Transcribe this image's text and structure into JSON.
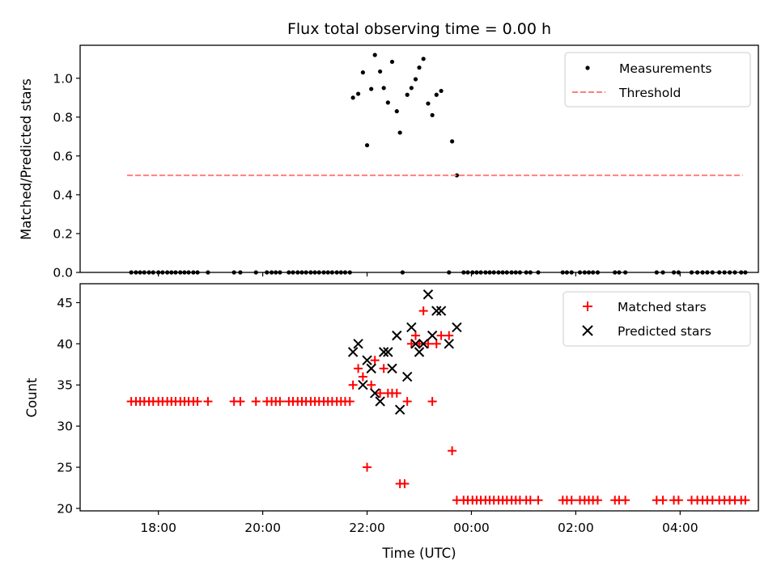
{
  "chart_data": [
    {
      "type": "scatter",
      "title": "Flux total observing time = 0.00 h",
      "xlabel": "",
      "ylabel": "Matched/Predicted stars",
      "xlim": [
        16.5,
        29.5
      ],
      "ylim": [
        0,
        1.17
      ],
      "yticks": [
        0.0,
        0.2,
        0.4,
        0.6,
        0.8,
        1.0
      ],
      "ytick_labels": [
        "0.0",
        "0.2",
        "0.4",
        "0.6",
        "0.8",
        "1.0"
      ],
      "legend_position": "top-right",
      "series": [
        {
          "name": "Measurements",
          "kind": "points",
          "color": "#000000",
          "points": [
            [
              17.48,
              0
            ],
            [
              17.57,
              0
            ],
            [
              17.65,
              0
            ],
            [
              17.73,
              0
            ],
            [
              17.82,
              0
            ],
            [
              17.9,
              0
            ],
            [
              18.0,
              0
            ],
            [
              18.08,
              0
            ],
            [
              18.17,
              0
            ],
            [
              18.25,
              0
            ],
            [
              18.33,
              0
            ],
            [
              18.42,
              0
            ],
            [
              18.5,
              0
            ],
            [
              18.58,
              0
            ],
            [
              18.67,
              0
            ],
            [
              18.75,
              0
            ],
            [
              18.95,
              0
            ],
            [
              19.45,
              0
            ],
            [
              19.57,
              0
            ],
            [
              19.87,
              0
            ],
            [
              20.08,
              0
            ],
            [
              20.17,
              0
            ],
            [
              20.25,
              0
            ],
            [
              20.33,
              0
            ],
            [
              20.5,
              0
            ],
            [
              20.58,
              0
            ],
            [
              20.67,
              0
            ],
            [
              20.75,
              0
            ],
            [
              20.83,
              0
            ],
            [
              20.92,
              0
            ],
            [
              21.0,
              0
            ],
            [
              21.08,
              0
            ],
            [
              21.17,
              0
            ],
            [
              21.25,
              0
            ],
            [
              21.33,
              0
            ],
            [
              21.42,
              0
            ],
            [
              21.5,
              0
            ],
            [
              21.58,
              0
            ],
            [
              21.67,
              0
            ],
            [
              21.73,
              0.9
            ],
            [
              21.83,
              0.92
            ],
            [
              21.92,
              1.03
            ],
            [
              22.0,
              0.655
            ],
            [
              22.08,
              0.945
            ],
            [
              22.15,
              1.12
            ],
            [
              22.25,
              1.035
            ],
            [
              22.32,
              0.95
            ],
            [
              22.4,
              0.875
            ],
            [
              22.48,
              1.085
            ],
            [
              22.57,
              0.83
            ],
            [
              22.63,
              0.72
            ],
            [
              22.68,
              0
            ],
            [
              22.77,
              0.915
            ],
            [
              22.85,
              0.95
            ],
            [
              22.93,
              0.995
            ],
            [
              23.0,
              1.055
            ],
            [
              23.08,
              1.1
            ],
            [
              23.17,
              0.87
            ],
            [
              23.25,
              0.81
            ],
            [
              23.33,
              0.915
            ],
            [
              23.42,
              0.935
            ],
            [
              23.57,
              0
            ],
            [
              23.63,
              0.675
            ],
            [
              23.72,
              0.5
            ],
            [
              23.85,
              0
            ],
            [
              23.93,
              0
            ],
            [
              24.02,
              0
            ],
            [
              24.1,
              0
            ],
            [
              24.18,
              0
            ],
            [
              24.27,
              0
            ],
            [
              24.35,
              0
            ],
            [
              24.43,
              0
            ],
            [
              24.52,
              0
            ],
            [
              24.6,
              0
            ],
            [
              24.68,
              0
            ],
            [
              24.77,
              0
            ],
            [
              24.85,
              0
            ],
            [
              24.93,
              0
            ],
            [
              25.05,
              0
            ],
            [
              25.13,
              0
            ],
            [
              25.28,
              0
            ],
            [
              25.75,
              0
            ],
            [
              25.83,
              0
            ],
            [
              25.92,
              0
            ],
            [
              26.08,
              0
            ],
            [
              26.17,
              0
            ],
            [
              26.25,
              0
            ],
            [
              26.33,
              0
            ],
            [
              26.42,
              0
            ],
            [
              26.75,
              0
            ],
            [
              26.83,
              0
            ],
            [
              26.95,
              0
            ],
            [
              27.55,
              0
            ],
            [
              27.67,
              0
            ],
            [
              27.88,
              0
            ],
            [
              27.97,
              0
            ],
            [
              28.22,
              0
            ],
            [
              28.33,
              0
            ],
            [
              28.43,
              0
            ],
            [
              28.52,
              0
            ],
            [
              28.62,
              0
            ],
            [
              28.75,
              0
            ],
            [
              28.85,
              0
            ],
            [
              28.95,
              0
            ],
            [
              29.05,
              0
            ],
            [
              29.17,
              0
            ],
            [
              29.25,
              0
            ]
          ]
        },
        {
          "name": "Threshold",
          "kind": "dashed-line",
          "color": "#ff7f7f",
          "x": [
            17.4,
            29.2
          ],
          "y": [
            0.5,
            0.5
          ]
        }
      ]
    },
    {
      "type": "scatter",
      "title": "",
      "xlabel": "Time (UTC)",
      "ylabel": "Count",
      "xlim": [
        16.5,
        29.5
      ],
      "ylim": [
        19.7,
        47.3
      ],
      "yticks": [
        20,
        25,
        30,
        35,
        40,
        45
      ],
      "ytick_labels": [
        "20",
        "25",
        "30",
        "35",
        "40",
        "45"
      ],
      "xticks": [
        18,
        20,
        22,
        24,
        26,
        28
      ],
      "xtick_labels": [
        "18:00",
        "20:00",
        "22:00",
        "00:00",
        "02:00",
        "04:00"
      ],
      "legend_position": "top-right",
      "series": [
        {
          "name": "Matched stars",
          "kind": "plus",
          "color": "#ff0000",
          "points": [
            [
              17.48,
              33
            ],
            [
              17.57,
              33
            ],
            [
              17.65,
              33
            ],
            [
              17.73,
              33
            ],
            [
              17.82,
              33
            ],
            [
              17.9,
              33
            ],
            [
              18.0,
              33
            ],
            [
              18.08,
              33
            ],
            [
              18.17,
              33
            ],
            [
              18.25,
              33
            ],
            [
              18.33,
              33
            ],
            [
              18.42,
              33
            ],
            [
              18.5,
              33
            ],
            [
              18.58,
              33
            ],
            [
              18.67,
              33
            ],
            [
              18.75,
              33
            ],
            [
              18.95,
              33
            ],
            [
              19.45,
              33
            ],
            [
              19.57,
              33
            ],
            [
              19.87,
              33
            ],
            [
              20.08,
              33
            ],
            [
              20.17,
              33
            ],
            [
              20.25,
              33
            ],
            [
              20.33,
              33
            ],
            [
              20.5,
              33
            ],
            [
              20.58,
              33
            ],
            [
              20.67,
              33
            ],
            [
              20.75,
              33
            ],
            [
              20.83,
              33
            ],
            [
              20.92,
              33
            ],
            [
              21.0,
              33
            ],
            [
              21.08,
              33
            ],
            [
              21.17,
              33
            ],
            [
              21.25,
              33
            ],
            [
              21.33,
              33
            ],
            [
              21.42,
              33
            ],
            [
              21.5,
              33
            ],
            [
              21.58,
              33
            ],
            [
              21.67,
              33
            ],
            [
              21.73,
              35
            ],
            [
              21.83,
              37
            ],
            [
              21.92,
              36
            ],
            [
              22.0,
              25
            ],
            [
              22.08,
              35
            ],
            [
              22.15,
              38
            ],
            [
              22.25,
              34
            ],
            [
              22.32,
              37
            ],
            [
              22.4,
              34
            ],
            [
              22.48,
              34
            ],
            [
              22.57,
              34
            ],
            [
              22.63,
              23
            ],
            [
              22.72,
              23
            ],
            [
              22.77,
              33
            ],
            [
              22.85,
              40
            ],
            [
              22.93,
              41
            ],
            [
              23.0,
              40
            ],
            [
              23.08,
              44
            ],
            [
              23.17,
              40
            ],
            [
              23.25,
              33
            ],
            [
              23.33,
              40
            ],
            [
              23.42,
              41
            ],
            [
              23.57,
              41
            ],
            [
              23.63,
              27
            ],
            [
              23.72,
              21
            ],
            [
              23.85,
              21
            ],
            [
              23.93,
              21
            ],
            [
              24.02,
              21
            ],
            [
              24.1,
              21
            ],
            [
              24.18,
              21
            ],
            [
              24.27,
              21
            ],
            [
              24.35,
              21
            ],
            [
              24.43,
              21
            ],
            [
              24.52,
              21
            ],
            [
              24.6,
              21
            ],
            [
              24.68,
              21
            ],
            [
              24.77,
              21
            ],
            [
              24.85,
              21
            ],
            [
              24.93,
              21
            ],
            [
              25.05,
              21
            ],
            [
              25.13,
              21
            ],
            [
              25.28,
              21
            ],
            [
              25.75,
              21
            ],
            [
              25.83,
              21
            ],
            [
              25.92,
              21
            ],
            [
              26.08,
              21
            ],
            [
              26.17,
              21
            ],
            [
              26.25,
              21
            ],
            [
              26.33,
              21
            ],
            [
              26.42,
              21
            ],
            [
              26.75,
              21
            ],
            [
              26.83,
              21
            ],
            [
              26.95,
              21
            ],
            [
              27.55,
              21
            ],
            [
              27.67,
              21
            ],
            [
              27.88,
              21
            ],
            [
              27.97,
              21
            ],
            [
              28.22,
              21
            ],
            [
              28.33,
              21
            ],
            [
              28.43,
              21
            ],
            [
              28.52,
              21
            ],
            [
              28.62,
              21
            ],
            [
              28.75,
              21
            ],
            [
              28.85,
              21
            ],
            [
              28.95,
              21
            ],
            [
              29.05,
              21
            ],
            [
              29.17,
              21
            ],
            [
              29.25,
              21
            ]
          ]
        },
        {
          "name": "Predicted stars",
          "kind": "x",
          "color": "#000000",
          "points": [
            [
              21.73,
              39
            ],
            [
              21.83,
              40
            ],
            [
              21.92,
              35
            ],
            [
              22.0,
              38
            ],
            [
              22.08,
              37
            ],
            [
              22.15,
              34
            ],
            [
              22.25,
              33
            ],
            [
              22.32,
              39
            ],
            [
              22.4,
              39
            ],
            [
              22.48,
              37
            ],
            [
              22.57,
              41
            ],
            [
              22.63,
              32
            ],
            [
              22.77,
              36
            ],
            [
              22.85,
              42
            ],
            [
              22.93,
              40
            ],
            [
              23.0,
              39
            ],
            [
              23.08,
              40
            ],
            [
              23.17,
              46
            ],
            [
              23.25,
              41
            ],
            [
              23.33,
              44
            ],
            [
              23.42,
              44
            ],
            [
              23.57,
              40
            ],
            [
              23.72,
              42
            ]
          ]
        }
      ]
    }
  ]
}
